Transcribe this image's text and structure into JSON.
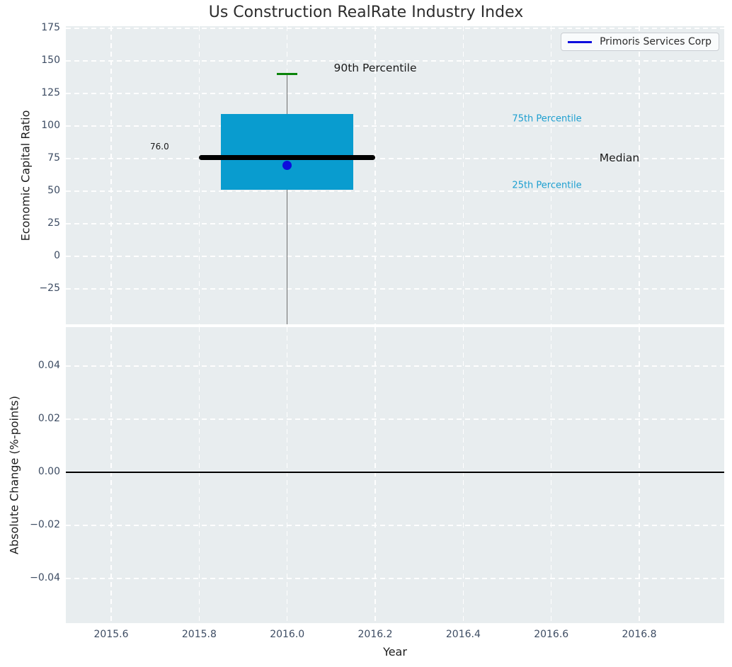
{
  "title": "Us Construction RealRate Industry Index",
  "legend": {
    "label": "Primoris Services Corp"
  },
  "colors": {
    "axes_bg": "#e8edef",
    "grid": "#ffffff",
    "box_fill": "#099ccf",
    "median_line": "#000000",
    "whisker": "#6e6e6e",
    "cap_green": "#0a840a",
    "company_blue": "#0d0ddd",
    "tick_text": "#3d4c63",
    "axis_label_text": "#1c1c1c",
    "annotation_dark": "#1a1a1a",
    "annotation_cyan": "#1d9fd0",
    "zero_line": "#000000"
  },
  "chart_data": {
    "type": "boxplot",
    "title": "Us Construction RealRate Industry Index",
    "top_axes": {
      "ylabel": "Economic Capital Ratio",
      "xlim": [
        2015.497,
        2016.993
      ],
      "ylim": [
        -52.2,
        176.6
      ],
      "yticks": [
        175,
        150,
        125,
        100,
        75,
        50,
        25,
        0,
        -25
      ],
      "ytick_labels": [
        "175",
        "150",
        "125",
        "100",
        "75",
        "50",
        "25",
        "0",
        "−25"
      ],
      "xticks": [
        2015.6,
        2015.8,
        2016.0,
        2016.2,
        2016.4,
        2016.6,
        2016.8
      ],
      "grid": true,
      "legend_position": "upper right"
    },
    "bottom_axes": {
      "ylabel": "Absolute Change (%-points)",
      "xlabel": "Year",
      "xlim": [
        2015.497,
        2016.993
      ],
      "ylim": [
        -0.0568,
        0.0547
      ],
      "yticks": [
        0.04,
        0.02,
        0.0,
        -0.02,
        -0.04
      ],
      "ytick_labels": [
        "0.04",
        "0.02",
        "0.00",
        "−0.02",
        "−0.04"
      ],
      "xticks": [
        2015.6,
        2015.8,
        2016.0,
        2016.2,
        2016.4,
        2016.6,
        2016.8
      ],
      "xtick_labels": [
        "2015.6",
        "2015.8",
        "2016.0",
        "2016.2",
        "2016.4",
        "2016.6",
        "2016.8"
      ],
      "zero_line_y": 0.0,
      "grid": true
    },
    "box": {
      "x": 2016.0,
      "p90": 140,
      "p75": 109,
      "median": 76.0,
      "p25": 51,
      "whisker_low_clipped_at_axis_bottom": true,
      "box_half_width": 0.15,
      "median_half_width": 0.2,
      "cap_half_width": 0.023
    },
    "company_point": {
      "label": "Primoris Services Corp",
      "x": 2016.0,
      "value": 70
    },
    "annotations": [
      {
        "text": "90th Percentile",
        "x": 2016.2,
        "y": 144.5,
        "style": "big-dark"
      },
      {
        "text": "76.0",
        "x": 2015.71,
        "y": 84.0,
        "style": "small-dark"
      },
      {
        "text": "75th Percentile",
        "x": 2016.59,
        "y": 105.5,
        "style": "cyan"
      },
      {
        "text": "Median",
        "x": 2016.755,
        "y": 75.5,
        "style": "big-dark"
      },
      {
        "text": "25th Percentile",
        "x": 2016.59,
        "y": 54.5,
        "style": "cyan"
      }
    ]
  }
}
